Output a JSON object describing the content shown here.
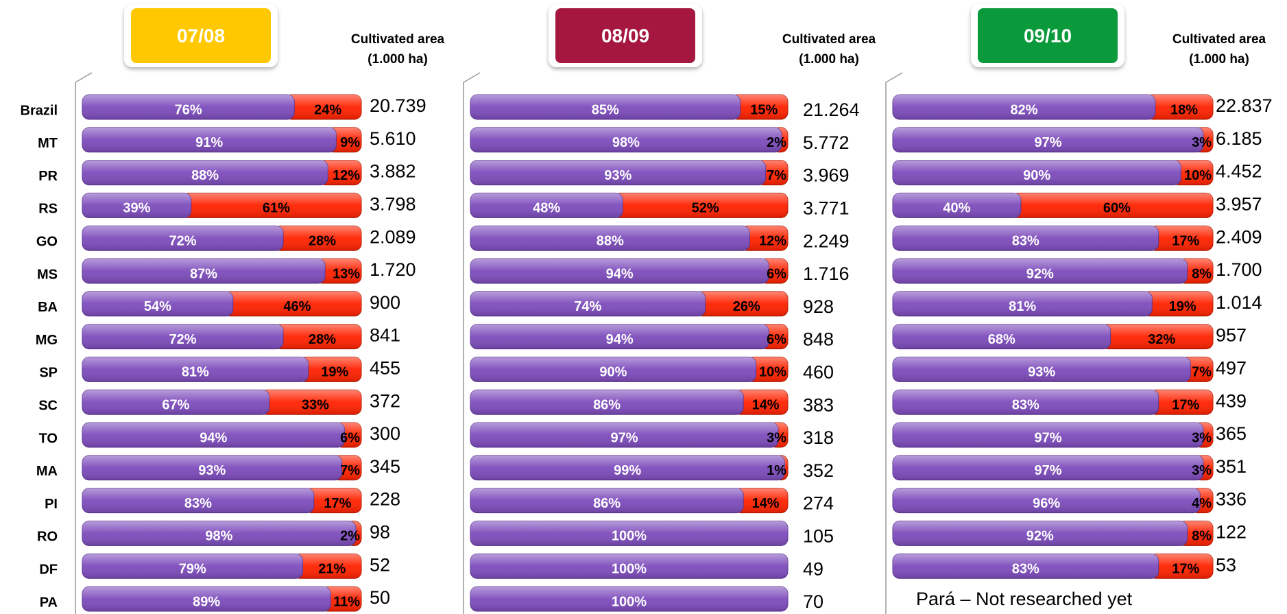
{
  "chart_data": [
    {
      "type": "bar",
      "stacked": true,
      "title": "07/08",
      "header_color": "#ffc800",
      "area_title": [
        "Cultivated area",
        "(1.000 ha)"
      ],
      "categories": [
        "Brazil",
        "MT",
        "PR",
        "RS",
        "GO",
        "MS",
        "BA",
        "MG",
        "SP",
        "SC",
        "TO",
        "MA",
        "PI",
        "RO",
        "DF",
        "PA"
      ],
      "series": [
        {
          "color": "#7d4cbc",
          "values": [
            76,
            91,
            88,
            39,
            72,
            87,
            54,
            72,
            81,
            67,
            94,
            93,
            83,
            98,
            79,
            89
          ],
          "value_labels": [
            "76%",
            "91%",
            "88%",
            "39%",
            "72%",
            "87%",
            "54%",
            "72%",
            "81%",
            "67%",
            "94%",
            "93%",
            "83%",
            "98%",
            "79%",
            "89%"
          ]
        },
        {
          "color": "#ff2200",
          "values": [
            24,
            9,
            12,
            61,
            28,
            13,
            46,
            28,
            19,
            33,
            6,
            7,
            17,
            2,
            21,
            11
          ],
          "value_labels": [
            "24%",
            "9%",
            "12%",
            "61%",
            "28%",
            "13%",
            "46%",
            "28%",
            "19%",
            "33%",
            "6%",
            "7%",
            "17%",
            "2%",
            "21%",
            "11%"
          ]
        }
      ],
      "area": {
        "values": [
          20739,
          5610,
          3882,
          3798,
          2089,
          1720,
          900,
          841,
          455,
          372,
          300,
          345,
          228,
          98,
          52,
          50
        ],
        "value_labels": [
          "20.739",
          "5.610",
          "3.882",
          "3.798",
          "2.089",
          "1.720",
          "900",
          "841",
          "455",
          "372",
          "300",
          "345",
          "228",
          "98",
          "52",
          "50"
        ]
      }
    },
    {
      "type": "bar",
      "stacked": true,
      "title": "08/09",
      "header_color": "#a6173f",
      "area_title": [
        "Cultivated area",
        "(1.000 ha)"
      ],
      "series": [
        {
          "color": "#7d4cbc",
          "values": [
            85,
            98,
            93,
            48,
            88,
            94,
            74,
            94,
            90,
            86,
            97,
            99,
            86,
            100,
            100,
            100
          ],
          "value_labels": [
            "85%",
            "98%",
            "93%",
            "48%",
            "88%",
            "94%",
            "74%",
            "94%",
            "90%",
            "86%",
            "97%",
            "99%",
            "86%",
            "100%",
            "100%",
            "100%"
          ]
        },
        {
          "color": "#ff2200",
          "values": [
            15,
            2,
            7,
            52,
            12,
            6,
            26,
            6,
            10,
            14,
            3,
            1,
            14,
            null,
            null,
            null
          ],
          "value_labels": [
            "15%",
            "2%",
            "7%",
            "52%",
            "12%",
            "6%",
            "26%",
            "6%",
            "10%",
            "14%",
            "3%",
            "1%",
            "14%",
            null,
            null,
            null
          ]
        }
      ],
      "area": {
        "values": [
          21264,
          5772,
          3969,
          3771,
          2249,
          1716,
          928,
          848,
          460,
          383,
          318,
          352,
          274,
          105,
          49,
          70
        ],
        "value_labels": [
          "21.264",
          "5.772",
          "3.969",
          "3.771",
          "2.249",
          "1.716",
          "928",
          "848",
          "460",
          "383",
          "318",
          "352",
          "274",
          "105",
          "49",
          "70"
        ]
      }
    },
    {
      "type": "bar",
      "stacked": true,
      "title": "09/10",
      "header_color": "#0a9a3c",
      "area_title": [
        "Cultivated area",
        "(1.000 ha)"
      ],
      "annotation": "Pará – Not researched yet",
      "series": [
        {
          "color": "#7d4cbc",
          "values": [
            82,
            97,
            90,
            40,
            83,
            92,
            81,
            68,
            93,
            83,
            97,
            97,
            96,
            92,
            83,
            null
          ],
          "value_labels": [
            "82%",
            "97%",
            "90%",
            "40%",
            "83%",
            "92%",
            "81%",
            "68%",
            "93%",
            "83%",
            "97%",
            "97%",
            "96%",
            "92%",
            "83%",
            null
          ]
        },
        {
          "color": "#ff2200",
          "values": [
            18,
            3,
            10,
            60,
            17,
            8,
            19,
            32,
            7,
            17,
            3,
            3,
            4,
            8,
            17,
            null
          ],
          "value_labels": [
            "18%",
            "3%",
            "10%",
            "60%",
            "17%",
            "8%",
            "19%",
            "32%",
            "7%",
            "17%",
            "3%",
            "3%",
            "4%",
            "8%",
            "17%",
            null
          ]
        }
      ],
      "area": {
        "values": [
          22837,
          6185,
          4452,
          3957,
          2409,
          1700,
          1014,
          957,
          497,
          439,
          365,
          351,
          336,
          122,
          53,
          null
        ],
        "value_labels": [
          "22.837",
          "6.185",
          "4.452",
          "3.957",
          "2.409",
          "1.700",
          "1.014",
          "957",
          "497",
          "439",
          "365",
          "351",
          "336",
          "122",
          "53",
          null
        ]
      }
    }
  ]
}
